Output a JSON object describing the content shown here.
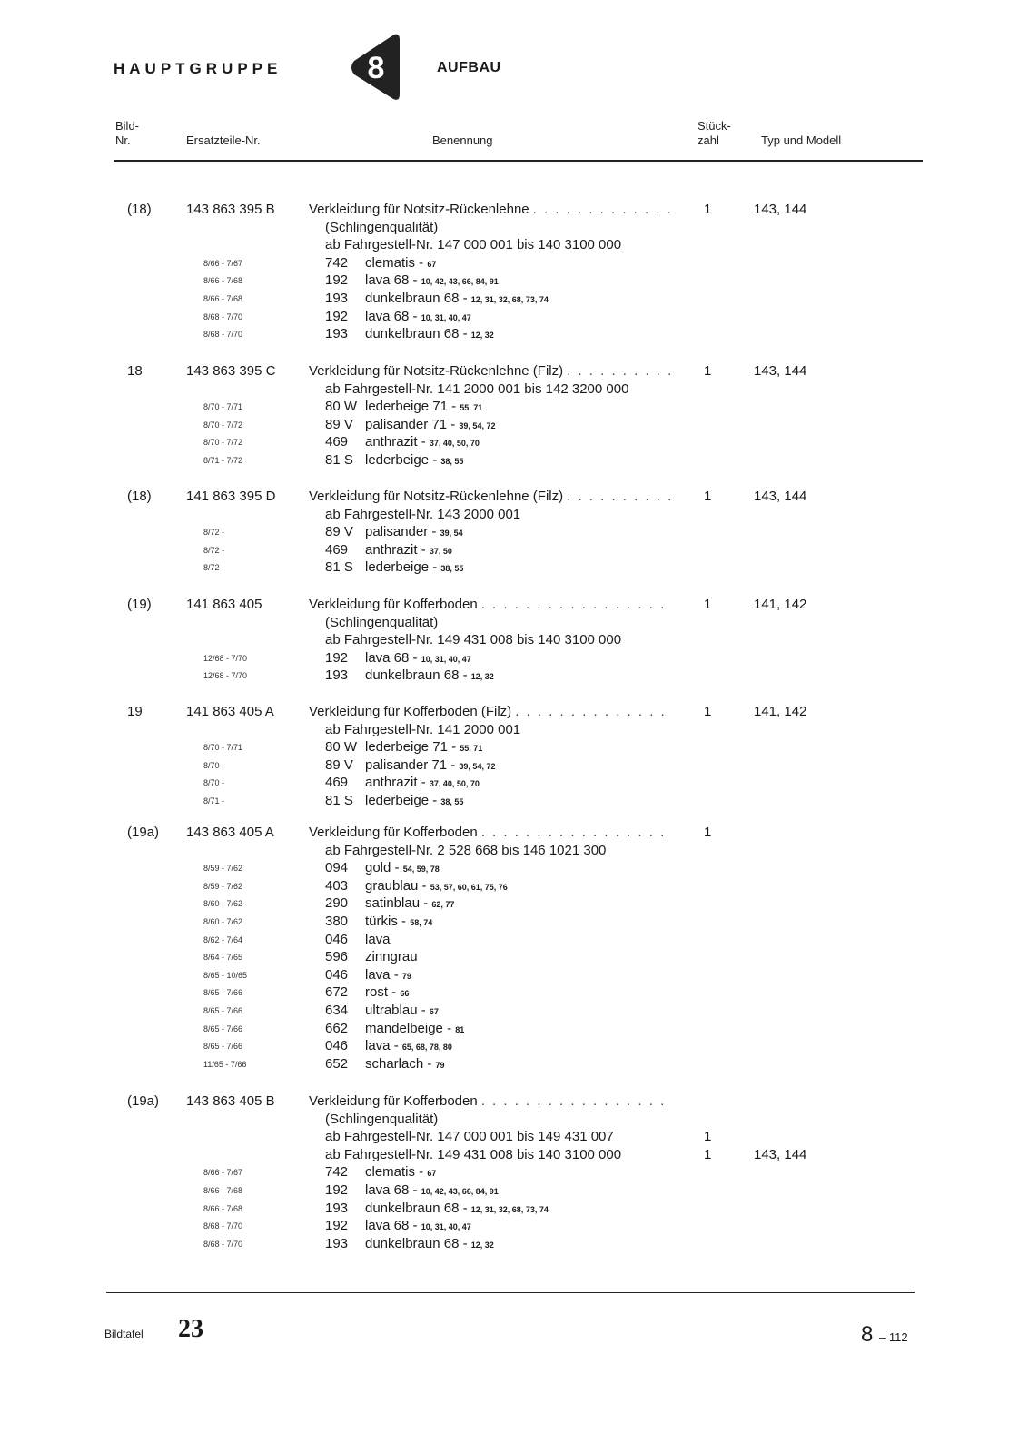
{
  "header": {
    "group_label": "HAUPTGRUPPE",
    "group_number": "8",
    "section": "AUFBAU"
  },
  "columns": {
    "bild_1": "Bild-",
    "bild_2": "Nr.",
    "part": "Ersatzteile-Nr.",
    "name": "Benennung",
    "qty_1": "Stück-",
    "qty_2": "zahl",
    "type": "Typ und Modell"
  },
  "entries": [
    {
      "bild": "(18)",
      "part": "143 863 395 B",
      "title": "Verkleidung für Notsitz-Rückenlehne",
      "qty": "1",
      "types": "143, 144",
      "sub": [
        {
          "text": "(Schlingenqualität)"
        },
        {
          "text": "ab Fahrgestell-Nr. 147 000 001 bis 140 3100 000"
        }
      ],
      "colors": [
        {
          "date": "8/66 - 7/67",
          "code": "742",
          "name": "clematis",
          "models": "67"
        },
        {
          "date": "8/66 - 7/68",
          "code": "192",
          "name": "lava 68",
          "models": "10, 42, 43, 66, 84, 91"
        },
        {
          "date": "8/66 - 7/68",
          "code": "193",
          "name": "dunkelbraun 68",
          "models": "12, 31, 32, 68, 73, 74"
        },
        {
          "date": "8/68 - 7/70",
          "code": "192",
          "name": "lava 68",
          "models": "10, 31, 40, 47"
        },
        {
          "date": "8/68 - 7/70",
          "code": "193",
          "name": "dunkelbraun 68",
          "models": "12, 32"
        }
      ]
    },
    {
      "bild": "18",
      "part": "143 863 395 C",
      "title": "Verkleidung für Notsitz-Rückenlehne (Filz)",
      "qty": "1",
      "types": "143, 144",
      "sub": [
        {
          "text": "ab Fahrgestell-Nr. 141 2000 001 bis 142 3200 000"
        }
      ],
      "colors": [
        {
          "date": "8/70 - 7/71",
          "code": "80 W",
          "name": "lederbeige 71",
          "models": "55, 71"
        },
        {
          "date": "8/70 - 7/72",
          "code": "89 V",
          "name": "palisander 71",
          "models": "39, 54, 72"
        },
        {
          "date": "8/70 - 7/72",
          "code": "469",
          "name": "anthrazit",
          "models": "37, 40, 50, 70"
        },
        {
          "date": "8/71 - 7/72",
          "code": "81 S",
          "name": "lederbeige",
          "models": "38, 55"
        }
      ]
    },
    {
      "bild": "(18)",
      "part": "141 863 395 D",
      "title": "Verkleidung für Notsitz-Rückenlehne (Filz)",
      "qty": "1",
      "types": "143, 144",
      "sub": [
        {
          "text": "ab Fahrgestell-Nr. 143 2000 001"
        }
      ],
      "colors": [
        {
          "date": "8/72 -",
          "code": "89 V",
          "name": "palisander",
          "models": "39, 54"
        },
        {
          "date": "8/72 -",
          "code": "469",
          "name": "anthrazit",
          "models": "37, 50"
        },
        {
          "date": "8/72 -",
          "code": "81 S",
          "name": "lederbeige",
          "models": "38, 55"
        }
      ]
    },
    {
      "bild": "(19)",
      "part": "141 863 405",
      "title": "Verkleidung für Kofferboden",
      "qty": "1",
      "types": "141, 142",
      "sub": [
        {
          "text": "(Schlingenqualität)"
        },
        {
          "text": "ab Fahrgestell-Nr. 149 431 008 bis 140 3100 000"
        }
      ],
      "colors": [
        {
          "date": "12/68 - 7/70",
          "code": "192",
          "name": "lava 68",
          "models": "10, 31, 40, 47"
        },
        {
          "date": "12/68 - 7/70",
          "code": "193",
          "name": "dunkelbraun 68",
          "models": "12, 32"
        }
      ]
    },
    {
      "bild": "19",
      "part": "141 863 405 A",
      "title": "Verkleidung für Kofferboden (Filz)",
      "qty": "1",
      "types": "141, 142",
      "sub": [
        {
          "text": "ab Fahrgestell-Nr. 141 2000 001"
        }
      ],
      "colors": [
        {
          "date": "8/70 - 7/71",
          "code": "80 W",
          "name": "lederbeige 71",
          "models": "55, 71"
        },
        {
          "date": "8/70 -",
          "code": "89 V",
          "name": "palisander 71",
          "models": "39, 54, 72"
        },
        {
          "date": "8/70 -",
          "code": "469",
          "name": "anthrazit",
          "models": "37, 40, 50, 70"
        },
        {
          "date": "8/71 -",
          "code": "81 S",
          "name": "lederbeige",
          "models": "38, 55"
        }
      ]
    },
    {
      "bild": "(19a)",
      "part": "143 863 405 A",
      "title": "Verkleidung für Kofferboden",
      "qty": "1",
      "types": "",
      "sub": [
        {
          "text": "ab Fahrgestell-Nr. 2 528 668 bis 146 1021 300"
        }
      ],
      "colors": [
        {
          "date": "8/59 - 7/62",
          "code": "094",
          "name": "gold",
          "models": "54, 59, 78"
        },
        {
          "date": "8/59 - 7/62",
          "code": "403",
          "name": "graublau",
          "models": "53, 57, 60, 61, 75, 76"
        },
        {
          "date": "8/60 - 7/62",
          "code": "290",
          "name": "satinblau",
          "models": "62, 77"
        },
        {
          "date": "8/60 - 7/62",
          "code": "380",
          "name": "türkis",
          "models": "58, 74"
        },
        {
          "date": "8/62 - 7/64",
          "code": "046",
          "name": "lava",
          "models": ""
        },
        {
          "date": "8/64 - 7/65",
          "code": "596",
          "name": "zinngrau",
          "models": ""
        },
        {
          "date": "8/65 - 10/65",
          "code": "046",
          "name": "lava",
          "models": "79"
        },
        {
          "date": "8/65 - 7/66",
          "code": "672",
          "name": "rost",
          "models": "66"
        },
        {
          "date": "8/65 - 7/66",
          "code": "634",
          "name": "ultrablau",
          "models": "67"
        },
        {
          "date": "8/65 - 7/66",
          "code": "662",
          "name": "mandelbeige",
          "models": "81"
        },
        {
          "date": "8/65 - 7/66",
          "code": "046",
          "name": "lava",
          "models": "65, 68, 78, 80"
        },
        {
          "date": "11/65 - 7/66",
          "code": "652",
          "name": "scharlach",
          "models": "79"
        }
      ]
    },
    {
      "bild": "(19a)",
      "part": "143 863 405 B",
      "title": "Verkleidung für Kofferboden",
      "qty": "",
      "types": "",
      "sub": [
        {
          "text": "(Schlingenqualität)"
        },
        {
          "text": "ab Fahrgestell-Nr. 147 000 001 bis 149 431 007",
          "qty": "1"
        },
        {
          "text": "ab Fahrgestell-Nr. 149 431 008 bis 140 3100 000",
          "qty": "1",
          "types": "143, 144"
        }
      ],
      "colors": [
        {
          "date": "8/66 - 7/67",
          "code": "742",
          "name": "clematis",
          "models": "67"
        },
        {
          "date": "8/66 - 7/68",
          "code": "192",
          "name": "lava 68",
          "models": "10, 42, 43, 66, 84, 91"
        },
        {
          "date": "8/66 - 7/68",
          "code": "193",
          "name": "dunkelbraun 68",
          "models": "12, 31, 32, 68, 73, 74"
        },
        {
          "date": "8/68 - 7/70",
          "code": "192",
          "name": "lava 68",
          "models": "10, 31, 40, 47"
        },
        {
          "date": "8/68 - 7/70",
          "code": "193",
          "name": "dunkelbraun 68",
          "models": "12, 32"
        }
      ]
    }
  ],
  "footer": {
    "plate_label": "Bildtafel",
    "plate_number": "23",
    "page_main": "8",
    "page_sub": "– 112"
  }
}
